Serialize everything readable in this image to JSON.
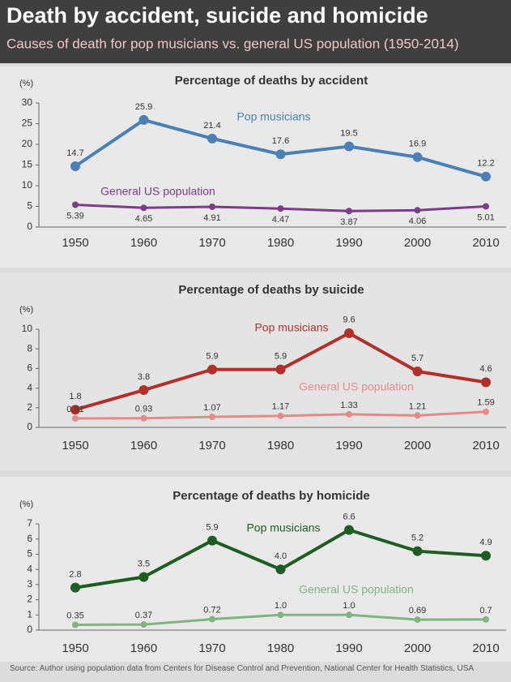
{
  "header": {
    "title": "Death by accident, suicide and homicide",
    "subtitle": "Causes of death for pop musicians vs. general US population (1950-2014)"
  },
  "chart_data": [
    {
      "type": "line",
      "title": "Percentage of deaths by accident",
      "ylabel": "(%)",
      "categories": [
        "1950",
        "1960",
        "1970",
        "1980",
        "1990",
        "2000",
        "2010"
      ],
      "ylim": [
        0,
        30
      ],
      "yticks": [
        0,
        5,
        10,
        15,
        20,
        25,
        30
      ],
      "series": [
        {
          "name": "Pop musicians",
          "color": "#4a80b6",
          "values": [
            14.7,
            25.9,
            21.4,
            17.6,
            19.5,
            16.9,
            12.2
          ]
        },
        {
          "name": "General US population",
          "color": "#7b3d86",
          "values": [
            5.39,
            4.65,
            4.91,
            4.47,
            3.87,
            4.06,
            5.01
          ]
        }
      ]
    },
    {
      "type": "line",
      "title": "Percentage of deaths by suicide",
      "ylabel": "(%)",
      "categories": [
        "1950",
        "1960",
        "1970",
        "1980",
        "1990",
        "2000",
        "2010"
      ],
      "ylim": [
        0,
        10
      ],
      "yticks": [
        0,
        2,
        4,
        6,
        8,
        10
      ],
      "series": [
        {
          "name": "Pop musicians",
          "color": "#b3302a",
          "values": [
            1.8,
            3.8,
            5.9,
            5.9,
            9.6,
            5.7,
            4.6
          ]
        },
        {
          "name": "General US population",
          "color": "#e38b8b",
          "values": [
            0.91,
            0.93,
            1.07,
            1.17,
            1.33,
            1.21,
            1.59
          ]
        }
      ]
    },
    {
      "type": "line",
      "title": "Percentage of deaths by homicide",
      "ylabel": "(%)",
      "categories": [
        "1950",
        "1960",
        "1970",
        "1980",
        "1990",
        "2000",
        "2010"
      ],
      "ylim": [
        0,
        7
      ],
      "yticks": [
        0,
        1,
        2,
        3,
        4,
        5,
        6,
        7
      ],
      "series": [
        {
          "name": "Pop musicians",
          "color": "#1d5d22",
          "values": [
            2.8,
            3.5,
            5.9,
            4,
            6.6,
            5.2,
            4.9
          ],
          "value_labels": [
            "2.8",
            "3.5",
            "5.9",
            "4.0",
            "6.6",
            "5.2",
            "4.9"
          ]
        },
        {
          "name": "General US population",
          "color": "#80b480",
          "values": [
            0.35,
            0.37,
            0.72,
            1,
            1,
            0.69,
            0.7
          ],
          "value_labels": [
            "0.35",
            "0.37",
            "0.72",
            "1.0",
            "1.0",
            "0.69",
            "0.7"
          ]
        }
      ]
    }
  ],
  "source": "Source: Author using population data from Centers for Disease Control and Prevention, National Center for Health Statistics, USA"
}
